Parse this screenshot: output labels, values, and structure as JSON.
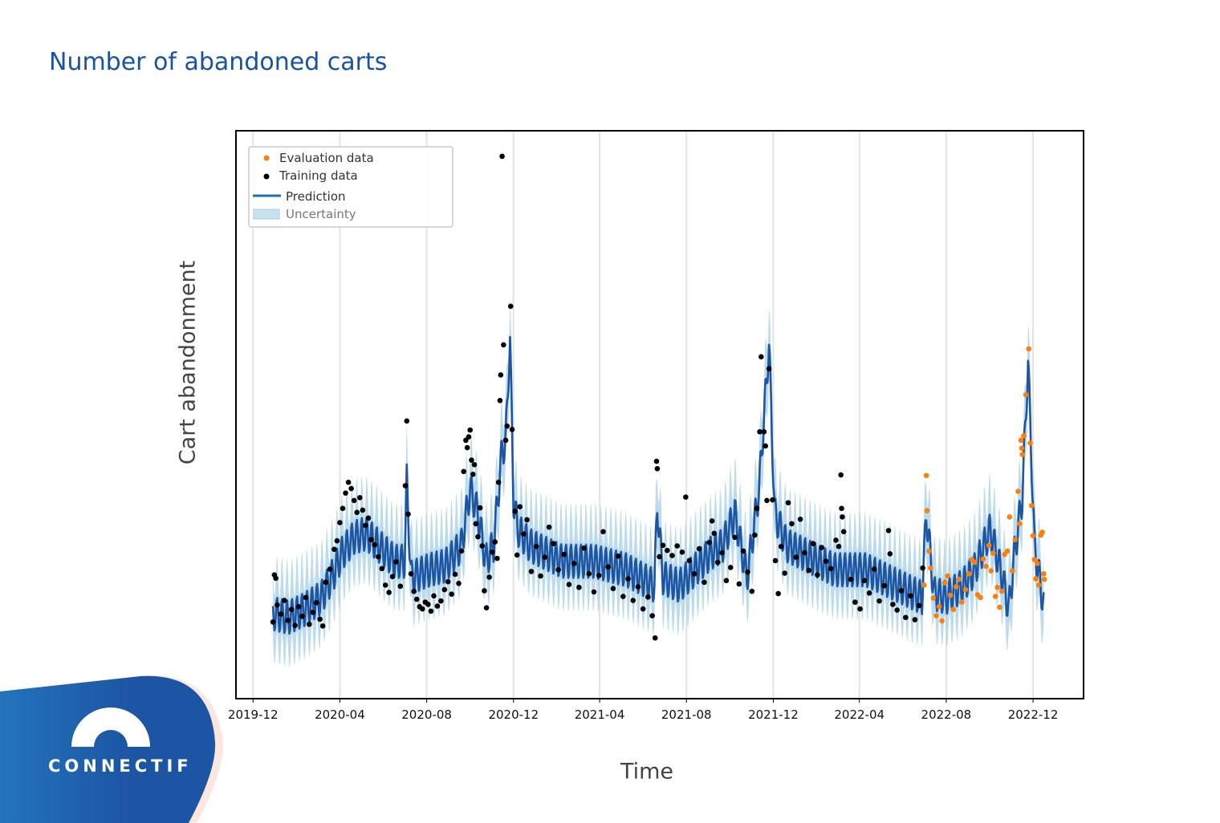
{
  "page": {
    "title": "Number of abandoned carts",
    "brand": "CONNECTIF"
  },
  "colors": {
    "title": "#1a52a3",
    "training": "#000000",
    "evaluation": "#ff7f0e",
    "prediction": "#1c55a3",
    "uncertainty": "#a6cfe6"
  },
  "chart_data": {
    "type": "line",
    "title": "",
    "xlabel": "Time",
    "ylabel": "Cart abandonment",
    "xlim": [
      "2019-11-07",
      "2023-02-10"
    ],
    "ylim": [
      0,
      100
    ],
    "y_tick_labels_shown": false,
    "grid": "vertical",
    "legend_position": "top-left",
    "x_ticks": [
      "2019-12",
      "2020-04",
      "2020-08",
      "2020-12",
      "2021-04",
      "2021-08",
      "2021-12",
      "2022-04",
      "2022-08",
      "2022-12"
    ],
    "legend": [
      {
        "label": "Evaluation data",
        "kind": "point",
        "color": "#ff7f0e"
      },
      {
        "label": "Training data",
        "kind": "point",
        "color": "#000000"
      },
      {
        "label": "Prediction",
        "kind": "line",
        "color": "#1f6fb0"
      },
      {
        "label": "Uncertainty",
        "kind": "band",
        "color": "#a6cfe6"
      }
    ],
    "prediction": {
      "weekly_seasonality_amplitude": 3,
      "uncertainty_halfwidth": 6,
      "trend": [
        [
          "2019-12-29",
          15.0
        ],
        [
          "2020-01-20",
          14.3
        ],
        [
          "2020-02-11",
          15.7
        ],
        [
          "2020-03-06",
          17.8
        ],
        [
          "2020-03-23",
          22.0
        ],
        [
          "2020-04-04",
          25.6
        ],
        [
          "2020-04-21",
          28.4
        ],
        [
          "2020-05-08",
          29.1
        ],
        [
          "2020-05-25",
          27.0
        ],
        [
          "2020-06-17",
          24.2
        ],
        [
          "2020-07-01",
          24.2
        ],
        [
          "2020-07-04",
          38.3
        ],
        [
          "2020-07-10",
          21.3
        ],
        [
          "2020-08-05",
          22.7
        ],
        [
          "2020-08-27",
          23.4
        ],
        [
          "2020-09-19",
          27.0
        ],
        [
          "2020-10-01",
          36.9
        ],
        [
          "2020-10-12",
          32.6
        ],
        [
          "2020-10-23",
          24.2
        ],
        [
          "2020-11-03",
          27.0
        ],
        [
          "2020-11-15",
          43.9
        ],
        [
          "2020-11-20",
          45.0
        ],
        [
          "2020-11-26",
          63.7
        ],
        [
          "2020-12-01",
          35.0
        ],
        [
          "2020-12-07",
          29.8
        ],
        [
          "2020-12-24",
          27.0
        ],
        [
          "2021-02-07",
          24.2
        ],
        [
          "2021-03-24",
          24.2
        ],
        [
          "2021-05-08",
          22.7
        ],
        [
          "2021-06-17",
          19.9
        ],
        [
          "2021-06-21",
          34.0
        ],
        [
          "2021-06-29",
          21.3
        ],
        [
          "2021-07-22",
          19.9
        ],
        [
          "2021-08-13",
          22.7
        ],
        [
          "2021-09-04",
          25.6
        ],
        [
          "2021-09-21",
          27.0
        ],
        [
          "2021-10-08",
          32.6
        ],
        [
          "2021-10-25",
          21.3
        ],
        [
          "2021-11-11",
          36.9
        ],
        [
          "2021-11-25",
          62.3
        ],
        [
          "2021-12-03",
          32.6
        ],
        [
          "2021-12-20",
          27.0
        ],
        [
          "2022-01-11",
          25.6
        ],
        [
          "2022-02-25",
          22.7
        ],
        [
          "2022-04-10",
          22.7
        ],
        [
          "2022-05-25",
          19.9
        ],
        [
          "2022-06-28",
          17.8
        ],
        [
          "2022-07-04",
          32.6
        ],
        [
          "2022-07-15",
          18.5
        ],
        [
          "2022-08-01",
          17.8
        ],
        [
          "2022-08-24",
          19.9
        ],
        [
          "2022-09-10",
          22.7
        ],
        [
          "2022-10-02",
          29.8
        ],
        [
          "2022-10-19",
          21.3
        ],
        [
          "2022-10-28",
          15.7
        ],
        [
          "2022-11-05",
          25.6
        ],
        [
          "2022-11-16",
          35.5
        ],
        [
          "2022-11-24",
          59.5
        ],
        [
          "2022-12-03",
          27.0
        ],
        [
          "2022-12-16",
          16.4
        ]
      ]
    },
    "training": [
      [
        "2019-12-29",
        13.5
      ],
      [
        "2019-12-31",
        21.8
      ],
      [
        "2020-01-02",
        21.2
      ],
      [
        "2020-01-04",
        16.5
      ],
      [
        "2020-01-09",
        14.9
      ],
      [
        "2020-01-14",
        17.3
      ],
      [
        "2020-01-19",
        13.8
      ],
      [
        "2020-01-24",
        15.7
      ],
      [
        "2020-01-29",
        12.9
      ],
      [
        "2020-02-03",
        16.2
      ],
      [
        "2020-02-08",
        14.5
      ],
      [
        "2020-02-13",
        17.8
      ],
      [
        "2020-02-18",
        13.1
      ],
      [
        "2020-02-23",
        15.2
      ],
      [
        "2020-02-28",
        16.9
      ],
      [
        "2020-03-04",
        14.0
      ],
      [
        "2020-03-08",
        12.8
      ],
      [
        "2020-03-12",
        20.5
      ],
      [
        "2020-03-18",
        22.8
      ],
      [
        "2020-03-24",
        26.3
      ],
      [
        "2020-03-28",
        27.8
      ],
      [
        "2020-04-01",
        31.0
      ],
      [
        "2020-04-05",
        33.5
      ],
      [
        "2020-04-09",
        36.2
      ],
      [
        "2020-04-13",
        38.1
      ],
      [
        "2020-04-17",
        37.0
      ],
      [
        "2020-04-21",
        34.9
      ],
      [
        "2020-04-25",
        32.8
      ],
      [
        "2020-04-29",
        35.4
      ],
      [
        "2020-05-03",
        33.2
      ],
      [
        "2020-05-07",
        30.5
      ],
      [
        "2020-05-11",
        31.8
      ],
      [
        "2020-05-15",
        28.0
      ],
      [
        "2020-05-20",
        27.1
      ],
      [
        "2020-05-25",
        25.0
      ],
      [
        "2020-05-30",
        22.9
      ],
      [
        "2020-06-04",
        20.0
      ],
      [
        "2020-06-09",
        18.7
      ],
      [
        "2020-06-14",
        21.5
      ],
      [
        "2020-06-19",
        24.1
      ],
      [
        "2020-06-25",
        19.8
      ],
      [
        "2020-07-02",
        37.5
      ],
      [
        "2020-07-04",
        48.9
      ],
      [
        "2020-07-06",
        32.5
      ],
      [
        "2020-07-10",
        22.0
      ],
      [
        "2020-07-14",
        18.9
      ],
      [
        "2020-07-18",
        17.5
      ],
      [
        "2020-07-22",
        16.2
      ],
      [
        "2020-07-26",
        15.8
      ],
      [
        "2020-07-30",
        17.0
      ],
      [
        "2020-08-03",
        16.6
      ],
      [
        "2020-08-07",
        15.4
      ],
      [
        "2020-08-11",
        18.1
      ],
      [
        "2020-08-16",
        16.3
      ],
      [
        "2020-08-21",
        17.2
      ],
      [
        "2020-08-26",
        19.2
      ],
      [
        "2020-08-31",
        20.6
      ],
      [
        "2020-09-05",
        18.4
      ],
      [
        "2020-09-10",
        21.9
      ],
      [
        "2020-09-15",
        20.3
      ],
      [
        "2020-09-19",
        26.0
      ],
      [
        "2020-09-22",
        40.0
      ],
      [
        "2020-09-25",
        45.5
      ],
      [
        "2020-09-27",
        44.2
      ],
      [
        "2020-09-29",
        46.1
      ],
      [
        "2020-10-01",
        47.3
      ],
      [
        "2020-10-03",
        42.0
      ],
      [
        "2020-10-05",
        39.5
      ],
      [
        "2020-10-07",
        41.2
      ],
      [
        "2020-10-09",
        30.8
      ],
      [
        "2020-10-12",
        28.5
      ],
      [
        "2020-10-15",
        33.6
      ],
      [
        "2020-10-18",
        26.9
      ],
      [
        "2020-10-21",
        19.0
      ],
      [
        "2020-10-24",
        16.0
      ],
      [
        "2020-10-28",
        21.4
      ],
      [
        "2020-11-01",
        25.8
      ],
      [
        "2020-11-05",
        27.6
      ],
      [
        "2020-11-08",
        24.7
      ],
      [
        "2020-11-10",
        38.1
      ],
      [
        "2020-11-12",
        52.5
      ],
      [
        "2020-11-13",
        57.0
      ],
      [
        "2020-11-15",
        95.5
      ],
      [
        "2020-11-17",
        62.3
      ],
      [
        "2020-11-20",
        45.5
      ],
      [
        "2020-11-22",
        48.0
      ],
      [
        "2020-11-27",
        69.1
      ],
      [
        "2020-11-29",
        47.4
      ],
      [
        "2020-12-03",
        33.0
      ],
      [
        "2020-12-06",
        25.3
      ],
      [
        "2020-12-10",
        33.8
      ],
      [
        "2020-12-15",
        29.0
      ],
      [
        "2020-12-20",
        31.5
      ],
      [
        "2020-12-26",
        22.4
      ],
      [
        "2021-01-02",
        26.8
      ],
      [
        "2021-01-08",
        21.6
      ],
      [
        "2021-01-14",
        24.9
      ],
      [
        "2021-01-20",
        30.2
      ],
      [
        "2021-01-26",
        27.3
      ],
      [
        "2021-02-02",
        22.7
      ],
      [
        "2021-02-10",
        25.4
      ],
      [
        "2021-02-17",
        20.1
      ],
      [
        "2021-02-24",
        23.8
      ],
      [
        "2021-03-03",
        19.6
      ],
      [
        "2021-03-10",
        26.5
      ],
      [
        "2021-03-17",
        22.0
      ],
      [
        "2021-03-24",
        18.8
      ],
      [
        "2021-03-31",
        21.7
      ],
      [
        "2021-04-06",
        29.4
      ],
      [
        "2021-04-13",
        23.2
      ],
      [
        "2021-04-20",
        19.4
      ],
      [
        "2021-04-27",
        25.1
      ],
      [
        "2021-05-04",
        18.0
      ],
      [
        "2021-05-11",
        21.1
      ],
      [
        "2021-05-18",
        17.3
      ],
      [
        "2021-05-25",
        19.7
      ],
      [
        "2021-06-01",
        15.8
      ],
      [
        "2021-06-08",
        17.9
      ],
      [
        "2021-06-14",
        14.6
      ],
      [
        "2021-06-18",
        10.7
      ],
      [
        "2021-06-20",
        41.8
      ],
      [
        "2021-06-21",
        40.5
      ],
      [
        "2021-06-24",
        25.0
      ],
      [
        "2021-06-29",
        27.0
      ],
      [
        "2021-07-05",
        26.1
      ],
      [
        "2021-07-12",
        25.2
      ],
      [
        "2021-07-19",
        26.9
      ],
      [
        "2021-07-26",
        25.8
      ],
      [
        "2021-07-31",
        35.5
      ],
      [
        "2021-08-05",
        24.3
      ],
      [
        "2021-08-12",
        22.0
      ],
      [
        "2021-08-19",
        26.4
      ],
      [
        "2021-08-26",
        20.5
      ],
      [
        "2021-09-02",
        27.5
      ],
      [
        "2021-09-06",
        31.3
      ],
      [
        "2021-09-09",
        29.1
      ],
      [
        "2021-09-14",
        24.0
      ],
      [
        "2021-09-20",
        25.7
      ],
      [
        "2021-09-26",
        20.8
      ],
      [
        "2021-10-02",
        23.1
      ],
      [
        "2021-10-08",
        28.4
      ],
      [
        "2021-10-14",
        20.2
      ],
      [
        "2021-10-20",
        26.0
      ],
      [
        "2021-10-26",
        22.3
      ],
      [
        "2021-11-01",
        18.9
      ],
      [
        "2021-11-05",
        28.8
      ],
      [
        "2021-11-08",
        33.5
      ],
      [
        "2021-11-12",
        47.0
      ],
      [
        "2021-11-14",
        60.2
      ],
      [
        "2021-11-18",
        47.0
      ],
      [
        "2021-11-20",
        44.5
      ],
      [
        "2021-11-22",
        34.9
      ],
      [
        "2021-11-25",
        58.1
      ],
      [
        "2021-11-30",
        35.0
      ],
      [
        "2021-12-04",
        24.3
      ],
      [
        "2021-12-08",
        18.5
      ],
      [
        "2021-12-12",
        26.8
      ],
      [
        "2021-12-17",
        22.1
      ],
      [
        "2021-12-22",
        34.5
      ],
      [
        "2021-12-27",
        30.8
      ],
      [
        "2022-01-02",
        24.9
      ],
      [
        "2022-01-08",
        31.6
      ],
      [
        "2022-01-14",
        25.7
      ],
      [
        "2022-01-20",
        22.6
      ],
      [
        "2022-01-26",
        27.3
      ],
      [
        "2022-02-01",
        21.8
      ],
      [
        "2022-02-07",
        26.6
      ],
      [
        "2022-02-13",
        24.2
      ],
      [
        "2022-02-20",
        22.9
      ],
      [
        "2022-02-27",
        27.9
      ],
      [
        "2022-03-03",
        26.8
      ],
      [
        "2022-03-06",
        39.4
      ],
      [
        "2022-03-07",
        33.5
      ],
      [
        "2022-03-08",
        32.0
      ],
      [
        "2022-03-10",
        29.4
      ],
      [
        "2022-03-20",
        21.0
      ],
      [
        "2022-03-26",
        17.0
      ],
      [
        "2022-04-02",
        15.8
      ],
      [
        "2022-04-08",
        20.8
      ],
      [
        "2022-04-15",
        18.6
      ],
      [
        "2022-04-22",
        22.8
      ],
      [
        "2022-04-29",
        17.2
      ],
      [
        "2022-05-06",
        19.9
      ],
      [
        "2022-05-12",
        29.6
      ],
      [
        "2022-05-14",
        25.5
      ],
      [
        "2022-05-18",
        16.6
      ],
      [
        "2022-05-24",
        15.6
      ],
      [
        "2022-05-30",
        19.0
      ],
      [
        "2022-06-05",
        14.3
      ],
      [
        "2022-06-12",
        18.1
      ],
      [
        "2022-06-18",
        13.9
      ],
      [
        "2022-06-24",
        16.4
      ],
      [
        "2022-06-29",
        23.0
      ]
    ],
    "evaluation": [
      [
        "2022-07-01",
        20.0
      ],
      [
        "2022-07-04",
        39.3
      ],
      [
        "2022-07-05",
        33.1
      ],
      [
        "2022-07-08",
        26.0
      ],
      [
        "2022-07-10",
        23.0
      ],
      [
        "2022-07-14",
        17.7
      ],
      [
        "2022-07-18",
        14.6
      ],
      [
        "2022-07-22",
        16.2
      ],
      [
        "2022-07-26",
        13.7
      ],
      [
        "2022-07-30",
        20.4
      ],
      [
        "2022-08-03",
        21.6
      ],
      [
        "2022-08-07",
        18.2
      ],
      [
        "2022-08-11",
        15.7
      ],
      [
        "2022-08-15",
        19.7
      ],
      [
        "2022-08-19",
        21.0
      ],
      [
        "2022-08-23",
        17.0
      ],
      [
        "2022-08-28",
        19.2
      ],
      [
        "2022-09-02",
        22.0
      ],
      [
        "2022-09-06",
        24.5
      ],
      [
        "2022-09-10",
        24.0
      ],
      [
        "2022-09-14",
        18.3
      ],
      [
        "2022-09-18",
        17.8
      ],
      [
        "2022-09-22",
        24.6
      ],
      [
        "2022-09-26",
        23.3
      ],
      [
        "2022-09-30",
        27.0
      ],
      [
        "2022-10-03",
        22.5
      ],
      [
        "2022-10-06",
        25.6
      ],
      [
        "2022-10-09",
        18.0
      ],
      [
        "2022-10-12",
        19.6
      ],
      [
        "2022-10-15",
        16.1
      ],
      [
        "2022-10-18",
        18.9
      ],
      [
        "2022-10-22",
        25.4
      ],
      [
        "2022-10-26",
        26.0
      ],
      [
        "2022-10-29",
        32.0
      ],
      [
        "2022-11-02",
        22.5
      ],
      [
        "2022-11-06",
        28.0
      ],
      [
        "2022-11-10",
        36.5
      ],
      [
        "2022-11-12",
        30.8
      ],
      [
        "2022-11-14",
        45.5
      ],
      [
        "2022-11-15",
        44.1
      ],
      [
        "2022-11-16",
        43.0
      ],
      [
        "2022-11-18",
        46.3
      ],
      [
        "2022-11-21",
        53.5
      ],
      [
        "2022-11-25",
        61.6
      ],
      [
        "2022-11-27",
        45.0
      ],
      [
        "2022-11-29",
        34.0
      ],
      [
        "2022-12-01",
        28.7
      ],
      [
        "2022-12-03",
        24.5
      ],
      [
        "2022-12-05",
        21.1
      ],
      [
        "2022-12-07",
        23.8
      ],
      [
        "2022-12-09",
        20.0
      ],
      [
        "2022-12-12",
        28.8
      ],
      [
        "2022-12-14",
        29.3
      ],
      [
        "2022-12-16",
        22.0
      ],
      [
        "2022-12-17",
        21.0
      ]
    ]
  }
}
